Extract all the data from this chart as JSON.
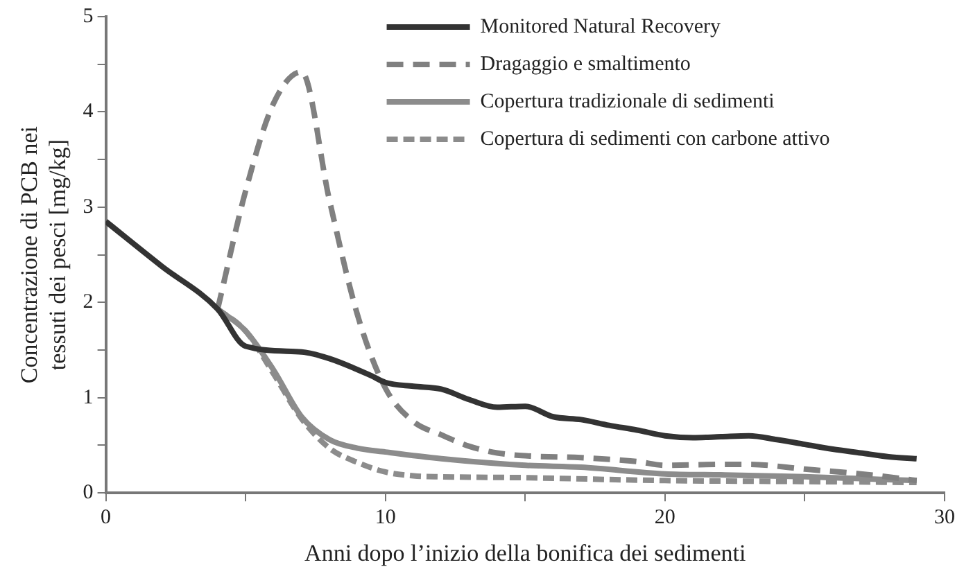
{
  "chart_data": {
    "type": "line",
    "xlabel": "Anni dopo l’inizio della bonifica dei sedimenti",
    "ylabel": "Concentrazione di PCB nei\ntessuti dei pesci [mg/kg]",
    "xlim": [
      0,
      30
    ],
    "xticks": [
      0,
      {
        "value": 5,
        "label": null
      },
      10,
      {
        "value": 15,
        "label": null
      },
      20,
      {
        "value": 25,
        "label": null
      },
      30
    ],
    "ylim": [
      0,
      5
    ],
    "yticks": [
      0,
      {
        "value": 0.5,
        "label": null
      },
      1,
      {
        "value": 1.5,
        "label": null
      },
      2,
      {
        "value": 2.5,
        "label": null
      },
      3,
      {
        "value": 3.5,
        "label": null
      },
      4,
      {
        "value": 4.5,
        "label": null
      },
      5
    ],
    "grid": false,
    "legend": "top right",
    "marker": "none",
    "series": [
      {
        "name": "Monitored Natural Recovery",
        "color": "#333333",
        "line_style": "solid",
        "x": [
          0,
          2,
          4,
          5,
          7,
          8,
          9.5,
          10,
          11,
          12,
          13,
          14,
          15,
          16,
          17,
          18,
          19,
          20,
          21,
          22,
          23,
          24,
          25,
          26,
          27,
          28,
          29
        ],
        "values": [
          2.85,
          2.38,
          1.93,
          1.54,
          1.48,
          1.41,
          1.23,
          1.16,
          1.12,
          1.09,
          0.98,
          0.9,
          0.91,
          0.8,
          0.77,
          0.71,
          0.66,
          0.6,
          0.58,
          0.59,
          0.6,
          0.56,
          0.51,
          0.46,
          0.42,
          0.38,
          0.36
        ]
      },
      {
        "name": "Dragaggio e smaltimento",
        "color": "#808080",
        "line_style": "dashed",
        "x": [
          4,
          5,
          6,
          7,
          8,
          9,
          10,
          11,
          12,
          13,
          14,
          15,
          17,
          19,
          20,
          22,
          23,
          25,
          27,
          28.5,
          29
        ],
        "values": [
          1.93,
          3.17,
          4.09,
          4.42,
          3.07,
          1.87,
          1.1,
          0.75,
          0.61,
          0.49,
          0.42,
          0.39,
          0.37,
          0.33,
          0.29,
          0.3,
          0.3,
          0.25,
          0.2,
          0.15,
          0.13
        ]
      },
      {
        "name": "Copertura tradizionale di sedimenti",
        "color": "#8c8c8c",
        "line_style": "solid",
        "x": [
          4,
          5,
          6,
          7,
          8,
          9,
          10,
          12,
          15,
          17,
          20,
          22,
          25,
          27,
          29
        ],
        "values": [
          1.93,
          1.7,
          1.29,
          0.8,
          0.56,
          0.47,
          0.43,
          0.36,
          0.29,
          0.27,
          0.2,
          0.19,
          0.17,
          0.15,
          0.13
        ]
      },
      {
        "name": "Copertura di sedimenti con carbone attivo",
        "color": "#8c8c8c",
        "line_style": "dotted",
        "x": [
          4,
          5,
          6,
          7,
          8,
          9,
          10,
          11,
          12,
          15,
          20,
          25,
          29
        ],
        "values": [
          1.93,
          1.7,
          1.25,
          0.78,
          0.47,
          0.32,
          0.22,
          0.18,
          0.17,
          0.16,
          0.13,
          0.12,
          0.11
        ]
      }
    ]
  }
}
